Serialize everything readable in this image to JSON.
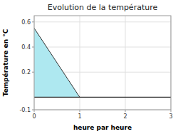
{
  "chart_data": {
    "type": "area",
    "title": "Evolution de la température",
    "x_label": "heure par heure",
    "y_label": "Température en °C",
    "x": [
      0,
      1
    ],
    "values": [
      0.55,
      0.0
    ],
    "color": "#aee8f0",
    "xlim": [
      0,
      3
    ],
    "ylim": [
      -0.1,
      0.65
    ],
    "xticks": [
      0,
      1,
      2,
      3
    ],
    "yticks": [
      -0.1,
      0.2,
      0.4,
      0.6
    ],
    "grid": true
  }
}
